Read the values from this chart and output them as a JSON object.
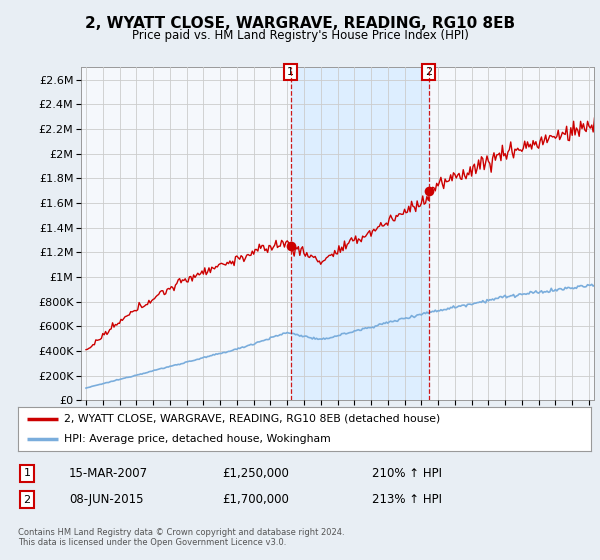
{
  "title": "2, WYATT CLOSE, WARGRAVE, READING, RG10 8EB",
  "subtitle": "Price paid vs. HM Land Registry's House Price Index (HPI)",
  "legend_line1": "2, WYATT CLOSE, WARGRAVE, READING, RG10 8EB (detached house)",
  "legend_line2": "HPI: Average price, detached house, Wokingham",
  "annotation1_date": "15-MAR-2007",
  "annotation1_price": "£1,250,000",
  "annotation1_hpi": "210% ↑ HPI",
  "annotation1_year": 2007.2,
  "annotation1_value": 1250000,
  "annotation2_date": "08-JUN-2015",
  "annotation2_price": "£1,700,000",
  "annotation2_hpi": "213% ↑ HPI",
  "annotation2_year": 2015.43,
  "annotation2_value": 1700000,
  "footnote": "Contains HM Land Registry data © Crown copyright and database right 2024.\nThis data is licensed under the Open Government Licence v3.0.",
  "ylim": [
    0,
    2700000
  ],
  "xlim_start": 1994.7,
  "xlim_end": 2025.3,
  "property_color": "#cc0000",
  "hpi_color": "#7aaddc",
  "shade_color": "#ddeeff",
  "background_color": "#e8eef4",
  "plot_bg_color": "#f5f8fc",
  "grid_color": "#cccccc"
}
